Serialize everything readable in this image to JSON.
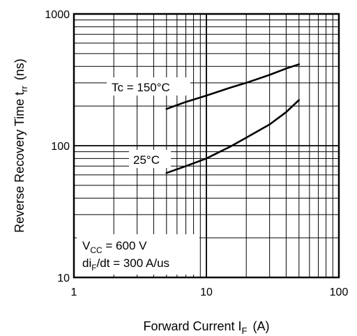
{
  "chart_data": {
    "type": "line",
    "title": "",
    "xlabel": "Forward  Current  I",
    "xlabel_sub": "F",
    "xlabel_unit": "(A)",
    "ylabel": "Reverse Recovery Time  t",
    "ylabel_sub": "rr",
    "ylabel_unit": "(ns)",
    "x_scale": "log",
    "y_scale": "log",
    "xlim": [
      1,
      100
    ],
    "ylim": [
      10,
      1000
    ],
    "x_ticks": [
      "1",
      "10",
      "100"
    ],
    "y_ticks": [
      "10",
      "100",
      "1000"
    ],
    "grid": true,
    "series": [
      {
        "name": "Tc = 150°C",
        "x": [
          5,
          7,
          10,
          15,
          20,
          30,
          40,
          50
        ],
        "y": [
          190,
          215,
          240,
          275,
          300,
          345,
          385,
          415
        ]
      },
      {
        "name": "25°C",
        "x": [
          5,
          7,
          10,
          15,
          20,
          30,
          40,
          50
        ],
        "y": [
          62,
          70,
          80,
          98,
          115,
          145,
          180,
          222
        ]
      }
    ],
    "annotations": [
      {
        "id": "conditions",
        "lines": [
          {
            "text": "V",
            "sub": "CC",
            "rest": " = 600 V"
          },
          {
            "text": "di",
            "sub": "F",
            "rest": "/dt = 300 A/us"
          }
        ]
      }
    ]
  }
}
